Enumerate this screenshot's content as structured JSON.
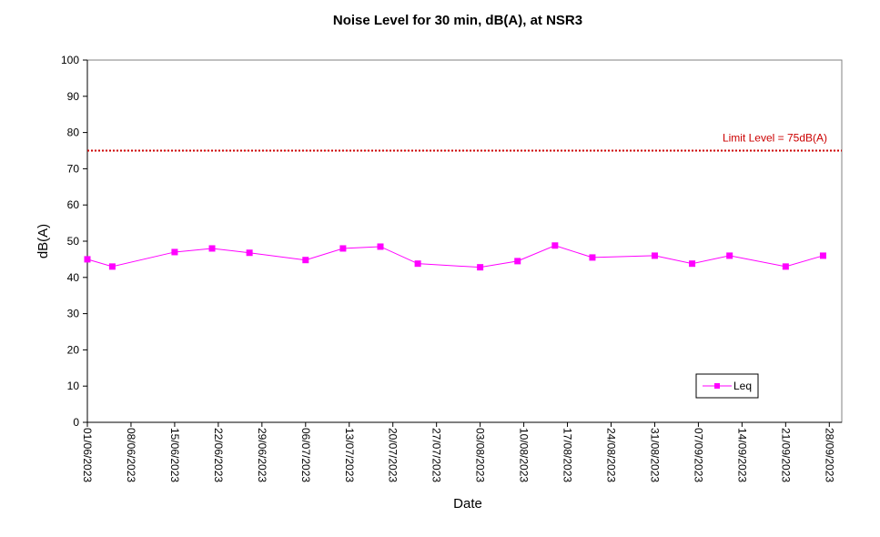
{
  "chart_data": {
    "type": "line",
    "title": "Noise Level for 30 min, dB(A), at NSR3",
    "xlabel": "Date",
    "ylabel": "dB(A)",
    "ylim": [
      0,
      100
    ],
    "yticks": [
      "0",
      "10",
      "20",
      "30",
      "40",
      "50",
      "60",
      "70",
      "80",
      "90",
      "100"
    ],
    "xlim": [
      "01/06/2023",
      "30/09/2023"
    ],
    "xticks": [
      "01/06/2023",
      "08/06/2023",
      "15/06/2023",
      "22/06/2023",
      "29/06/2023",
      "06/07/2023",
      "13/07/2023",
      "20/07/2023",
      "27/07/2023",
      "03/08/2023",
      "10/08/2023",
      "17/08/2023",
      "24/08/2023",
      "31/08/2023",
      "07/09/2023",
      "14/09/2023",
      "21/09/2023",
      "28/09/2023"
    ],
    "grid": false,
    "legend_position": "bottom-right",
    "series": [
      {
        "name": "Leq",
        "color": "#ff00ff",
        "marker": "square",
        "x": [
          "01/06/2023",
          "05/06/2023",
          "15/06/2023",
          "21/06/2023",
          "27/06/2023",
          "06/07/2023",
          "12/07/2023",
          "18/07/2023",
          "24/07/2023",
          "03/08/2023",
          "09/08/2023",
          "15/08/2023",
          "21/08/2023",
          "31/08/2023",
          "06/09/2023",
          "12/09/2023",
          "21/09/2023",
          "27/09/2023"
        ],
        "values": [
          45.0,
          43.0,
          47.0,
          48.0,
          46.8,
          44.8,
          48.0,
          48.5,
          43.8,
          42.8,
          44.5,
          48.8,
          45.5,
          46.0,
          43.8,
          46.0,
          43.0,
          46.0
        ]
      }
    ],
    "limit_line": {
      "value": 75,
      "label": "Limit Level  = 75dB(A)",
      "color": "#cc0000"
    }
  }
}
